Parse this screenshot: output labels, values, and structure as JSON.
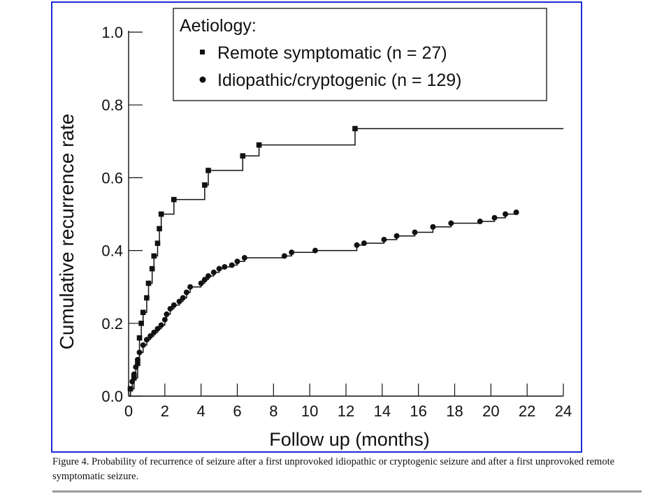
{
  "chart_data": {
    "type": "line",
    "xlabel": "Follow up (months)",
    "ylabel": "Cumulative recurrence rate",
    "xlim": [
      0,
      24
    ],
    "ylim": [
      0,
      1.0
    ],
    "xticks": [
      0,
      2,
      4,
      6,
      8,
      10,
      12,
      14,
      16,
      18,
      20,
      22,
      24
    ],
    "yticks": [
      "0.0",
      "0.2",
      "0.4",
      "0.6",
      "0.8",
      "1.0"
    ],
    "grid": false,
    "legend": {
      "title": "Aetiology:",
      "position": "top-right",
      "entries": [
        {
          "label": "Remote symptomatic (n = 27)",
          "marker": "square"
        },
        {
          "label": "Idiopathic/cryptogenic (n = 129)",
          "marker": "circle"
        }
      ]
    },
    "series": [
      {
        "name": "Remote symptomatic (n = 27)",
        "marker": "square",
        "step": "post",
        "points": [
          [
            0,
            0.0
          ],
          [
            0.1,
            0.02
          ],
          [
            0.3,
            0.05
          ],
          [
            0.5,
            0.09
          ],
          [
            0.6,
            0.16
          ],
          [
            0.7,
            0.2
          ],
          [
            0.8,
            0.23
          ],
          [
            1.0,
            0.27
          ],
          [
            1.1,
            0.31
          ],
          [
            1.3,
            0.35
          ],
          [
            1.4,
            0.385
          ],
          [
            1.6,
            0.42
          ],
          [
            1.7,
            0.46
          ],
          [
            1.8,
            0.5
          ],
          [
            2.5,
            0.54
          ],
          [
            4.2,
            0.58
          ],
          [
            4.4,
            0.62
          ],
          [
            6.3,
            0.66
          ],
          [
            7.2,
            0.69
          ],
          [
            12.5,
            0.735
          ],
          [
            24,
            0.735
          ]
        ]
      },
      {
        "name": "Idiopathic/cryptogenic (n = 129)",
        "marker": "circle",
        "step": "post",
        "points": [
          [
            0,
            0.0
          ],
          [
            0.1,
            0.02
          ],
          [
            0.2,
            0.04
          ],
          [
            0.3,
            0.06
          ],
          [
            0.4,
            0.08
          ],
          [
            0.5,
            0.1
          ],
          [
            0.6,
            0.12
          ],
          [
            0.8,
            0.14
          ],
          [
            1.0,
            0.155
          ],
          [
            1.2,
            0.165
          ],
          [
            1.4,
            0.175
          ],
          [
            1.6,
            0.185
          ],
          [
            1.8,
            0.195
          ],
          [
            2.0,
            0.21
          ],
          [
            2.1,
            0.225
          ],
          [
            2.3,
            0.24
          ],
          [
            2.5,
            0.25
          ],
          [
            2.8,
            0.26
          ],
          [
            3.0,
            0.27
          ],
          [
            3.2,
            0.285
          ],
          [
            3.4,
            0.3
          ],
          [
            4.0,
            0.31
          ],
          [
            4.2,
            0.32
          ],
          [
            4.4,
            0.33
          ],
          [
            4.7,
            0.34
          ],
          [
            5.0,
            0.35
          ],
          [
            5.3,
            0.355
          ],
          [
            5.7,
            0.36
          ],
          [
            6.0,
            0.37
          ],
          [
            6.4,
            0.38
          ],
          [
            8.6,
            0.385
          ],
          [
            9.0,
            0.395
          ],
          [
            10.3,
            0.4
          ],
          [
            12.6,
            0.415
          ],
          [
            13.0,
            0.42
          ],
          [
            14.1,
            0.43
          ],
          [
            14.8,
            0.44
          ],
          [
            15.8,
            0.45
          ],
          [
            16.8,
            0.465
          ],
          [
            17.8,
            0.475
          ],
          [
            19.4,
            0.48
          ],
          [
            20.2,
            0.49
          ],
          [
            20.8,
            0.5
          ],
          [
            21.4,
            0.505
          ]
        ]
      }
    ]
  },
  "caption": "Figure 4. Probability of recurrence of seizure after a first unprovoked idiopathic or cryptogenic seizure and after a first unprovoked remote symptomatic seizure.",
  "colors": {
    "frame": "#1a2bd6",
    "ink": "#111111",
    "rule": "#9a9a9a"
  }
}
